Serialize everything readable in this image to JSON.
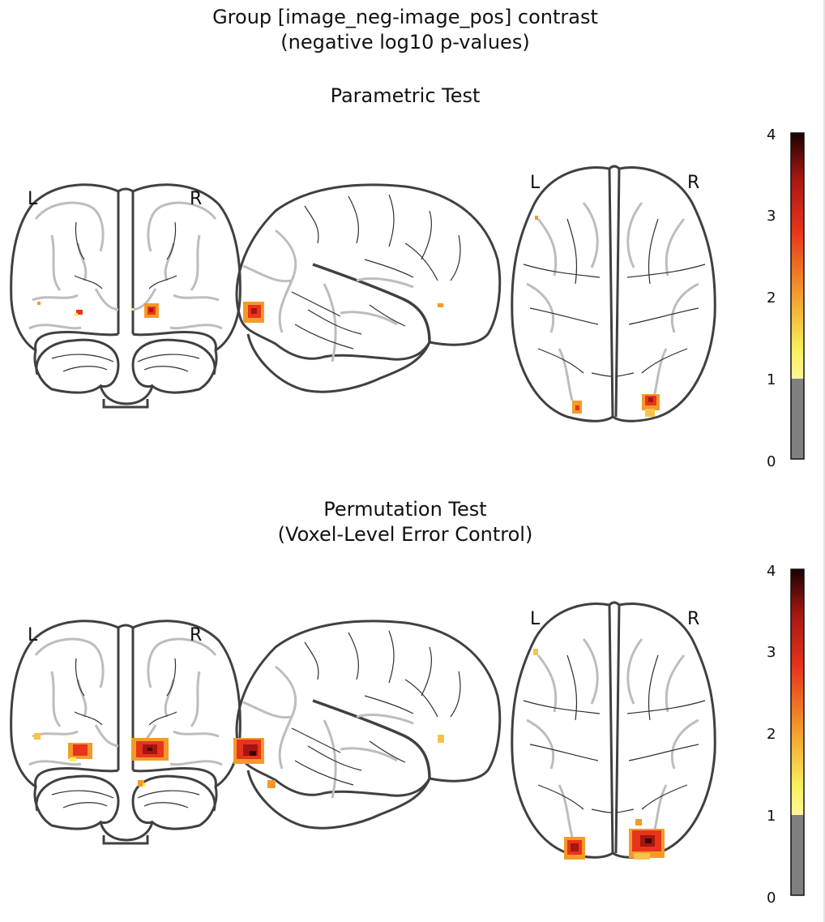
{
  "figure": {
    "title_line1": "Group [image_neg-image_pos] contrast",
    "title_line2": "(negative log10 p-values)"
  },
  "panels": [
    {
      "title_line1": "Parametric Test",
      "title_line2": "",
      "views": [
        {
          "name": "coronal",
          "left_label": "L",
          "right_label": "R"
        },
        {
          "name": "sagittal"
        },
        {
          "name": "axial",
          "left_label": "L",
          "right_label": "R"
        }
      ],
      "colorbar": {
        "ticks": [
          "0",
          "1",
          "2",
          "3",
          "4"
        ],
        "min": 0,
        "max": 4,
        "threshold": 1
      }
    },
    {
      "title_line1": "Permutation Test",
      "title_line2": "(Voxel-Level Error Control)",
      "views": [
        {
          "name": "coronal",
          "left_label": "L",
          "right_label": "R"
        },
        {
          "name": "sagittal"
        },
        {
          "name": "axial",
          "left_label": "L",
          "right_label": "R"
        }
      ],
      "colorbar": {
        "ticks": [
          "0",
          "1",
          "2",
          "3",
          "4"
        ],
        "min": 0,
        "max": 4,
        "threshold": 1
      }
    }
  ],
  "colormap": {
    "name": "hot",
    "below_threshold": "#808080",
    "stops": [
      "#f7f05a",
      "#f39a2a",
      "#e8341b",
      "#a51612",
      "#2a0404"
    ]
  }
}
